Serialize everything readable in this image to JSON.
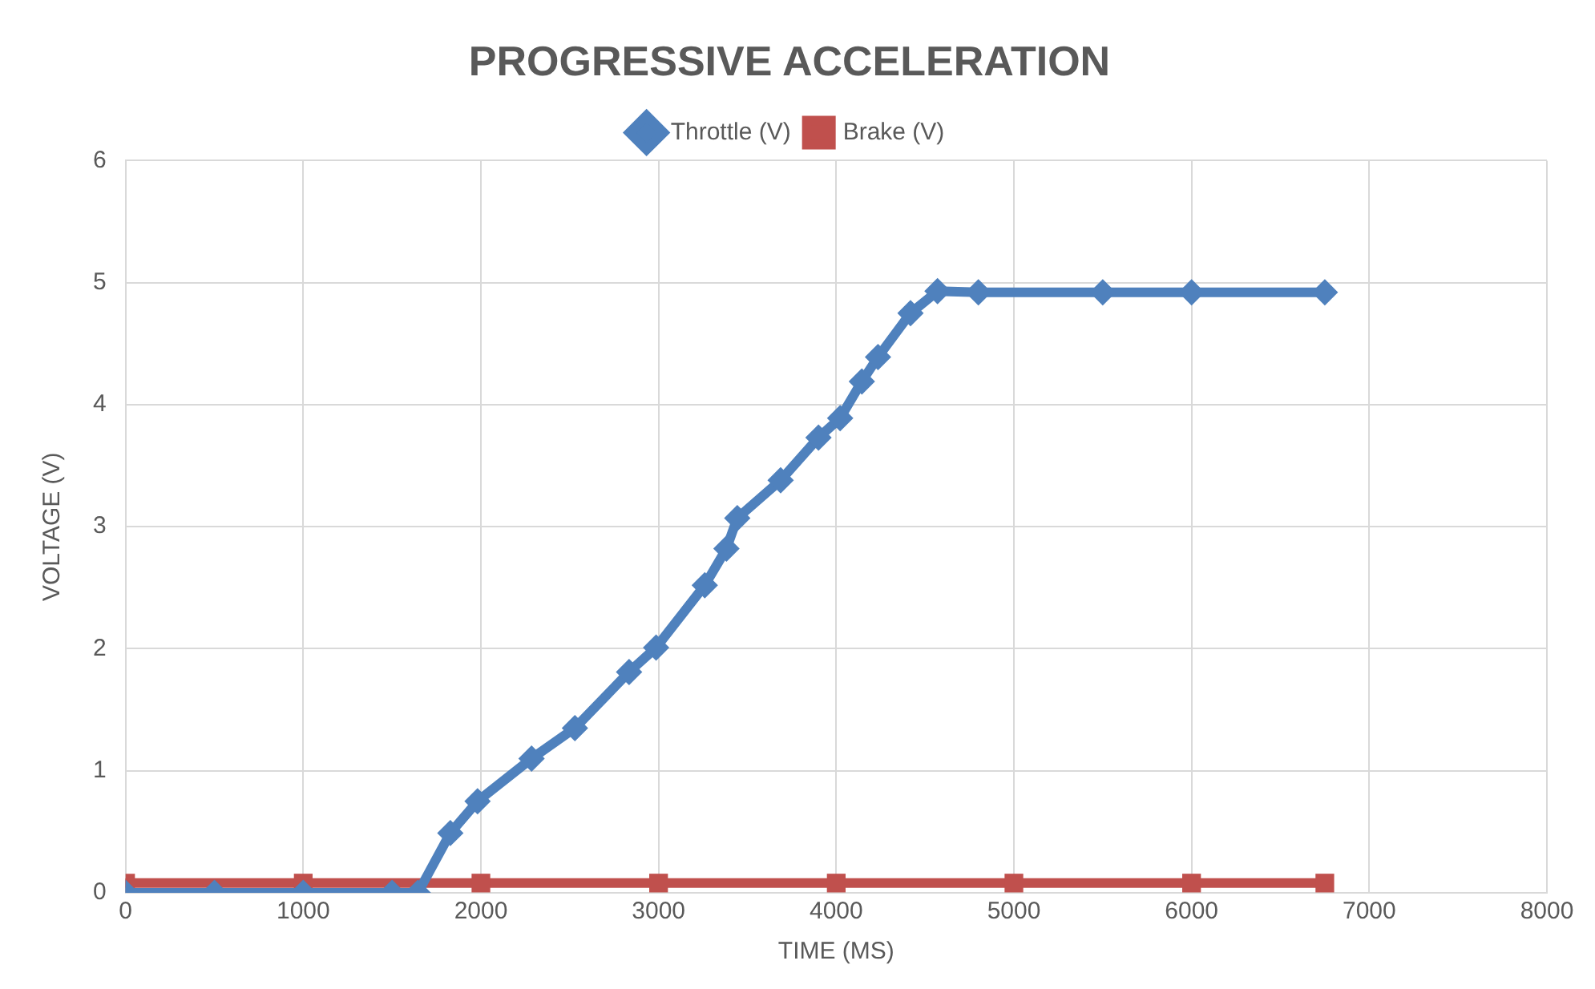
{
  "chart_data": {
    "type": "line",
    "title": "PROGRESSIVE ACCELERATION",
    "xlabel": "TIME (MS)",
    "ylabel": "VOLTAGE (V)",
    "xlim": [
      0,
      8000
    ],
    "xticks": [
      0,
      1000,
      2000,
      3000,
      4000,
      5000,
      6000,
      7000,
      8000
    ],
    "ylim": [
      0,
      6
    ],
    "yticks": [
      0,
      1,
      2,
      3,
      4,
      5,
      6
    ],
    "grid": true,
    "legend": "top",
    "series": [
      {
        "name": "Throttle (V)",
        "color": "#4f81bd",
        "marker": "diamond",
        "x": [
          0,
          500,
          1000,
          1500,
          1645,
          1828,
          1981,
          2285,
          2529,
          2834,
          2986,
          3260,
          3382,
          3443,
          3687,
          3900,
          4022,
          4144,
          4235,
          4418,
          4570,
          4800,
          5500,
          6000,
          6750
        ],
        "values": [
          0,
          0,
          0,
          0,
          0,
          0.49,
          0.75,
          1.1,
          1.35,
          1.81,
          2.01,
          2.52,
          2.82,
          3.07,
          3.38,
          3.73,
          3.89,
          4.19,
          4.39,
          4.75,
          4.93,
          4.92,
          4.92,
          4.92,
          4.92
        ]
      },
      {
        "name": "Brake (V)",
        "color": "#c0504d",
        "marker": "square",
        "x": [
          0,
          1000,
          2000,
          3000,
          4000,
          5000,
          6000,
          6750
        ],
        "values": [
          0.08,
          0.08,
          0.08,
          0.08,
          0.08,
          0.08,
          0.08,
          0.08
        ]
      }
    ]
  }
}
